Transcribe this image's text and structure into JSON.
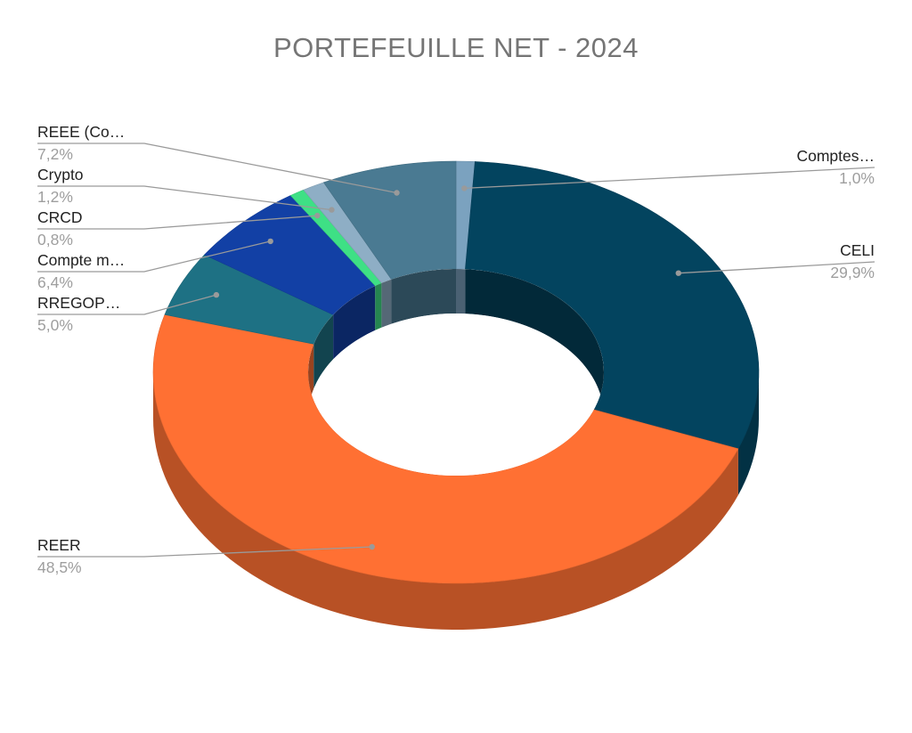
{
  "chart_data": {
    "type": "pie",
    "title": "PORTEFEUILLE NET - 2024",
    "style": "3d-donut",
    "slices": [
      {
        "label": "Comptes…",
        "value": 1.0,
        "value_label": "1,0%",
        "color": "#7ba2bf"
      },
      {
        "label": "CELI",
        "value": 29.9,
        "value_label": "29,9%",
        "color": "#03445f"
      },
      {
        "label": "REER",
        "value": 48.5,
        "value_label": "48,5%",
        "color": "#ff7033"
      },
      {
        "label": "RREGOP…",
        "value": 5.0,
        "value_label": "5,0%",
        "color": "#1e7184"
      },
      {
        "label": "Compte m…",
        "value": 6.4,
        "value_label": "6,4%",
        "color": "#1240a5"
      },
      {
        "label": "CRCD",
        "value": 0.8,
        "value_label": "0,8%",
        "color": "#3ee085"
      },
      {
        "label": "Crypto",
        "value": 1.2,
        "value_label": "1,2%",
        "color": "#8eaec5"
      },
      {
        "label": "REEE (Co…",
        "value": 7.2,
        "value_label": "7,2%",
        "color": "#4a7a92"
      }
    ]
  }
}
